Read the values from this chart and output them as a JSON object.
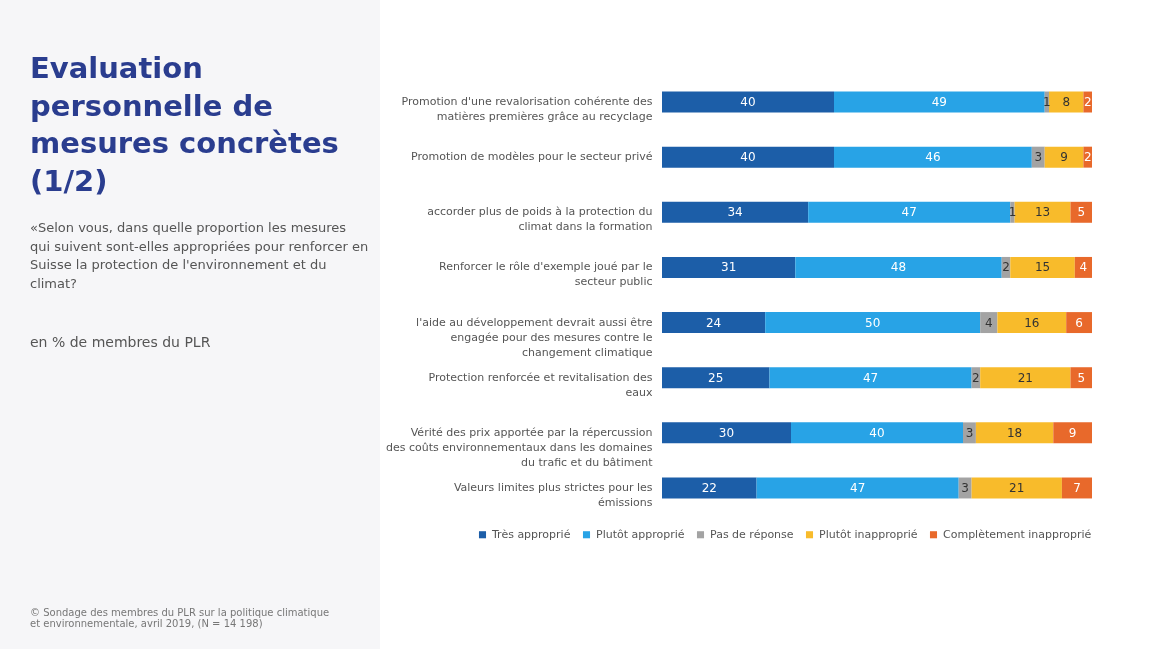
{
  "chart_data": {
    "type": "bar",
    "orientation": "horizontal",
    "stacked": true,
    "data_labels": true,
    "legend": "bottom",
    "grid": false,
    "title": "Evaluation personnelle de mesures concrètes (1/2)",
    "subtitle": "«Selon vous, dans quelle proportion les mesures qui suivent sont-elles appropriées pour renforcer en Suisse la protection de l'environnement et du climat?",
    "annotations": [
      "en % de membres du PLR",
      "© Sondage des membres du PLR sur la politique climatique et environnementale, avril 2019, (N = 14 198)"
    ],
    "categories": [
      "Promotion d'une revalorisation cohérente des matières premières grâce au recyclage",
      "Promotion de modèles pour le secteur privé",
      "accorder plus de poids à la protection du climat dans la formation",
      "Renforcer le rôle d'exemple joué par le secteur public",
      "l'aide au développement devrait aussi être engagée pour des mesures contre le changement climatique",
      "Protection renforcée et revitalisation des eaux",
      "Vérité des prix apportée par la répercussion des coûts environnementaux dans les domaines du trafic et du bâtiment",
      "Valeurs limites plus strictes pour les émissions"
    ],
    "series": [
      {
        "name": "Très approprié",
        "color": "#1c5ea8",
        "values": [
          40,
          40,
          34,
          31,
          24,
          25,
          30,
          22
        ]
      },
      {
        "name": "Plutôt approprié",
        "color": "#28a3e6",
        "values": [
          49,
          46,
          47,
          48,
          50,
          47,
          40,
          47
        ]
      },
      {
        "name": "Pas de réponse",
        "color": "#a3a3a3",
        "values": [
          1,
          3,
          1,
          2,
          4,
          2,
          3,
          3
        ]
      },
      {
        "name": "Plutôt inapproprié",
        "color": "#f8bb2b",
        "values": [
          8,
          9,
          13,
          15,
          16,
          21,
          18,
          21
        ]
      },
      {
        "name": "Complètement inapproprié",
        "color": "#e8692b",
        "values": [
          2,
          2,
          5,
          4,
          6,
          5,
          9,
          7
        ]
      }
    ]
  }
}
